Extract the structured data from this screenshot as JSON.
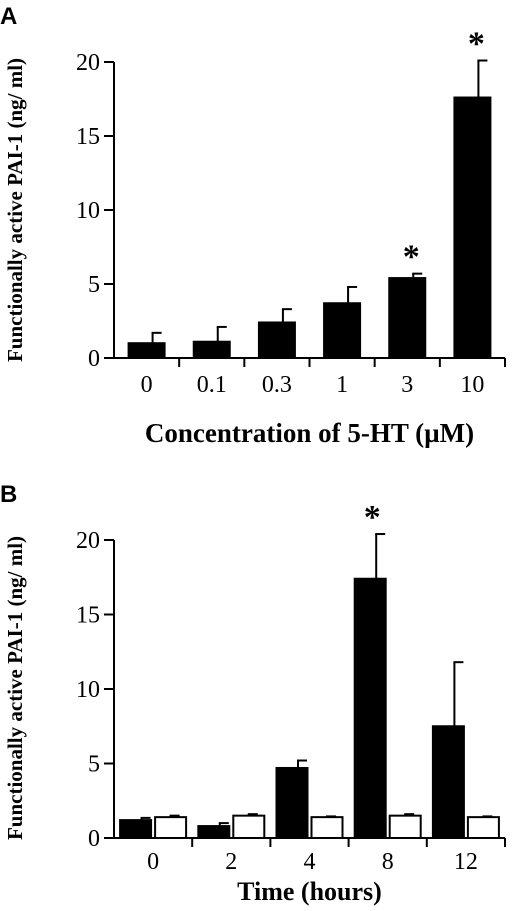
{
  "chart_data": [
    {
      "panel": "A",
      "type": "bar",
      "xlabel": "Concentration of 5-HT (µM)",
      "ylabel": "Functionally active PAI-1 (ng/ ml)",
      "ylim": [
        0,
        20
      ],
      "yticks": [
        "0",
        "5",
        "10",
        "15",
        "20"
      ],
      "categories": [
        "0",
        "0.1",
        "0.3",
        "1",
        "3",
        "10"
      ],
      "series": [
        {
          "fill": "#000000",
          "values": [
            1.0,
            1.1,
            2.4,
            3.7,
            5.4,
            17.6
          ],
          "errors": [
            0.7,
            1.0,
            0.9,
            1.1,
            0.3,
            2.5
          ]
        }
      ],
      "annotations": [
        {
          "category": "3",
          "text": "*"
        },
        {
          "category": "10",
          "text": "*"
        }
      ],
      "grid": false,
      "legend": "none"
    },
    {
      "panel": "B",
      "type": "bar",
      "xlabel": "Time (hours)",
      "ylabel": "Functionally active PAI-1 (ng/ ml)",
      "ylim": [
        0,
        20
      ],
      "yticks": [
        "0",
        "5",
        "10",
        "15",
        "20"
      ],
      "categories": [
        "0",
        "2",
        "4",
        "8",
        "12"
      ],
      "series": [
        {
          "fill": "#000000",
          "values": [
            1.2,
            0.8,
            4.7,
            17.4,
            7.5
          ],
          "errors": [
            0.15,
            0.2,
            0.5,
            3.0,
            4.3
          ]
        },
        {
          "fill": "#ffffff",
          "values": [
            1.4,
            1.5,
            1.4,
            1.5,
            1.4
          ],
          "errors": [
            0.1,
            0.1,
            0.05,
            0.1,
            0.05
          ]
        }
      ],
      "annotations": [
        {
          "category": "8",
          "series": 0,
          "text": "*"
        }
      ],
      "grid": false,
      "legend": "none"
    }
  ]
}
